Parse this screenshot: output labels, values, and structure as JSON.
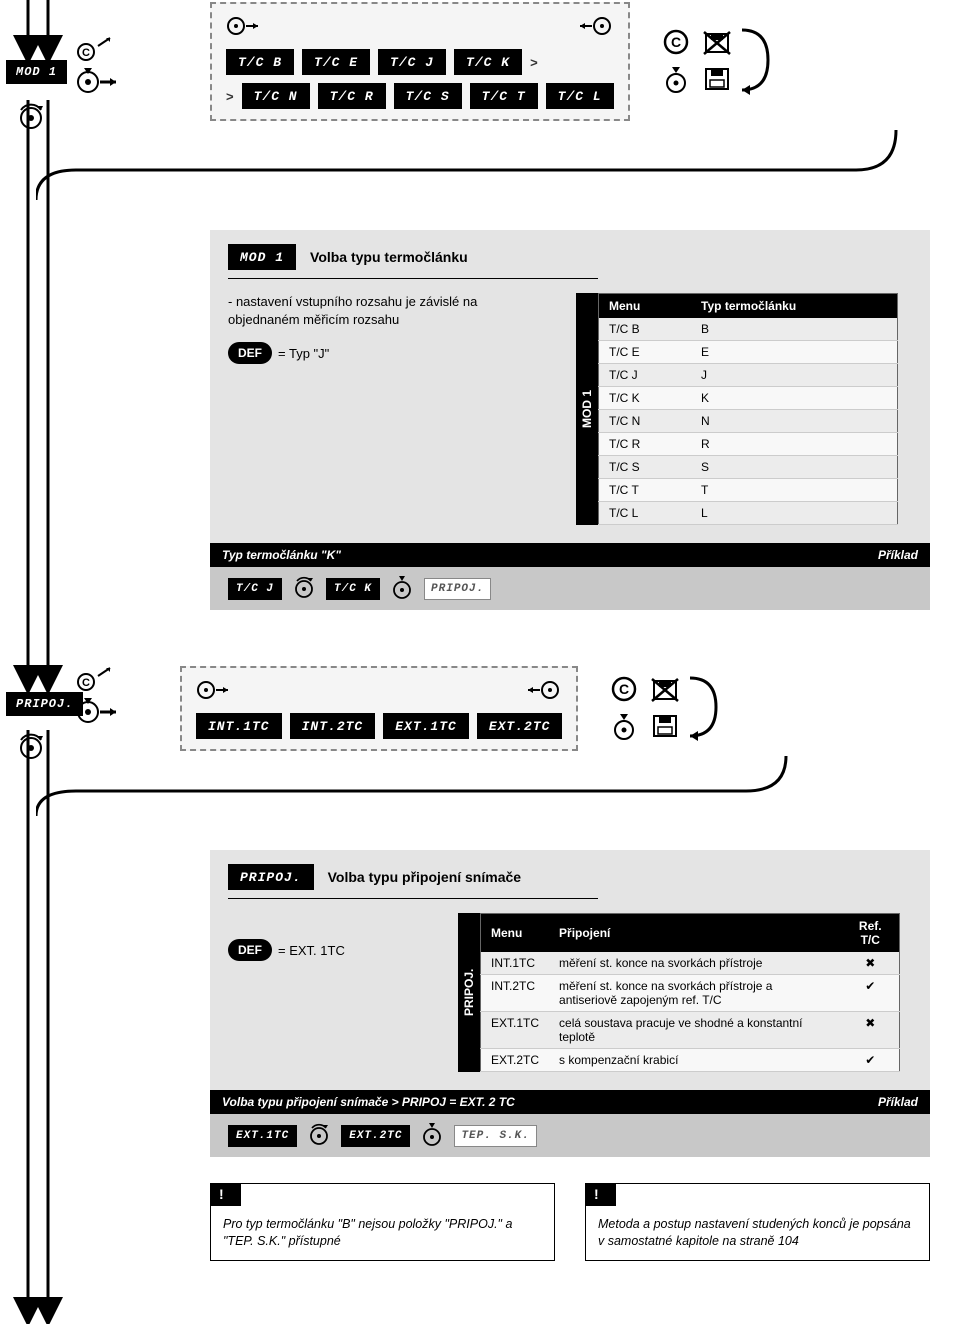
{
  "colors": {
    "black": "#000000",
    "white": "#ffffff",
    "panel_bg": "#e4e4e4",
    "strip_bg": "#c8c8c8",
    "dashed_bg": "#f5f5f5",
    "dash_border": "#888888"
  },
  "flow": {
    "mod1_label": "MOD 1",
    "pripoj_label": "PRIPOJ."
  },
  "seq1": {
    "row1": [
      "T/C B",
      "T/C E",
      "T/C J",
      "T/C K"
    ],
    "row2": [
      "T/C N",
      "T/C R",
      "T/C S",
      "T/C T",
      "T/C L"
    ],
    "gt": ">"
  },
  "seq2": {
    "items": [
      "INT.1TC",
      "INT.2TC",
      "EXT.1TC",
      "EXT.2TC"
    ]
  },
  "panel1": {
    "tag": "MOD 1",
    "title": "Volba typu termočlánku",
    "desc": "- nastavení vstupního rozsahu je závislé na objednaném měřicím rozsahu",
    "def_label": "DEF",
    "def_value": "= Typ \"J\"",
    "table": {
      "sidecap": "MOD 1",
      "head": [
        "Menu",
        "Typ termočlánku"
      ],
      "rows": [
        [
          "T/C B",
          "B"
        ],
        [
          "T/C E",
          "E"
        ],
        [
          "T/C J",
          "J"
        ],
        [
          "T/C K",
          "K"
        ],
        [
          "T/C N",
          "N"
        ],
        [
          "T/C R",
          "R"
        ],
        [
          "T/C S",
          "S"
        ],
        [
          "T/C T",
          "T"
        ],
        [
          "T/C L",
          "L"
        ]
      ]
    },
    "example_left": "Typ termočlánku \"K\"",
    "example_right": "Příklad",
    "strip": {
      "a": "T/C J",
      "b": "T/C K",
      "c": "PRIPOJ."
    }
  },
  "panel2": {
    "tag": "PRIPOJ.",
    "title": "Volba typu připojení snímače",
    "def_label": "DEF",
    "def_value": "= EXT. 1TC",
    "table": {
      "sidecap": "PRIPOJ.",
      "head": [
        "Menu",
        "Připojení",
        "Ref. T/C"
      ],
      "rows": [
        [
          "INT.1TC",
          "měření st. konce na svorkách přístroje",
          "✖"
        ],
        [
          "INT.2TC",
          "měření st. konce na svorkách přístroje a antiseriově zapojeným ref. T/C",
          "✔"
        ],
        [
          "EXT.1TC",
          "celá soustava pracuje ve shodné a konstantní teplotě",
          "✖"
        ],
        [
          "EXT.2TC",
          "s kompenzační krabicí",
          "✔"
        ]
      ]
    },
    "example_left": "Volba typu připojení snímače &gt; PRIPOJ = EXT. 2 TC",
    "example_right": "Příklad",
    "strip": {
      "a": "EXT.1TC",
      "b": "EXT.2TC",
      "c": "TEP. S.K."
    }
  },
  "notes": {
    "bang": "!",
    "n1": "Pro typ termočlánku \"B\" nejsou položky \"PRIPOJ.\" a \"TEP. S.K.\" přístupné",
    "n2": "Metoda a postup nastavení studených konců je popsána v samostatné kapitole na straně 104"
  }
}
